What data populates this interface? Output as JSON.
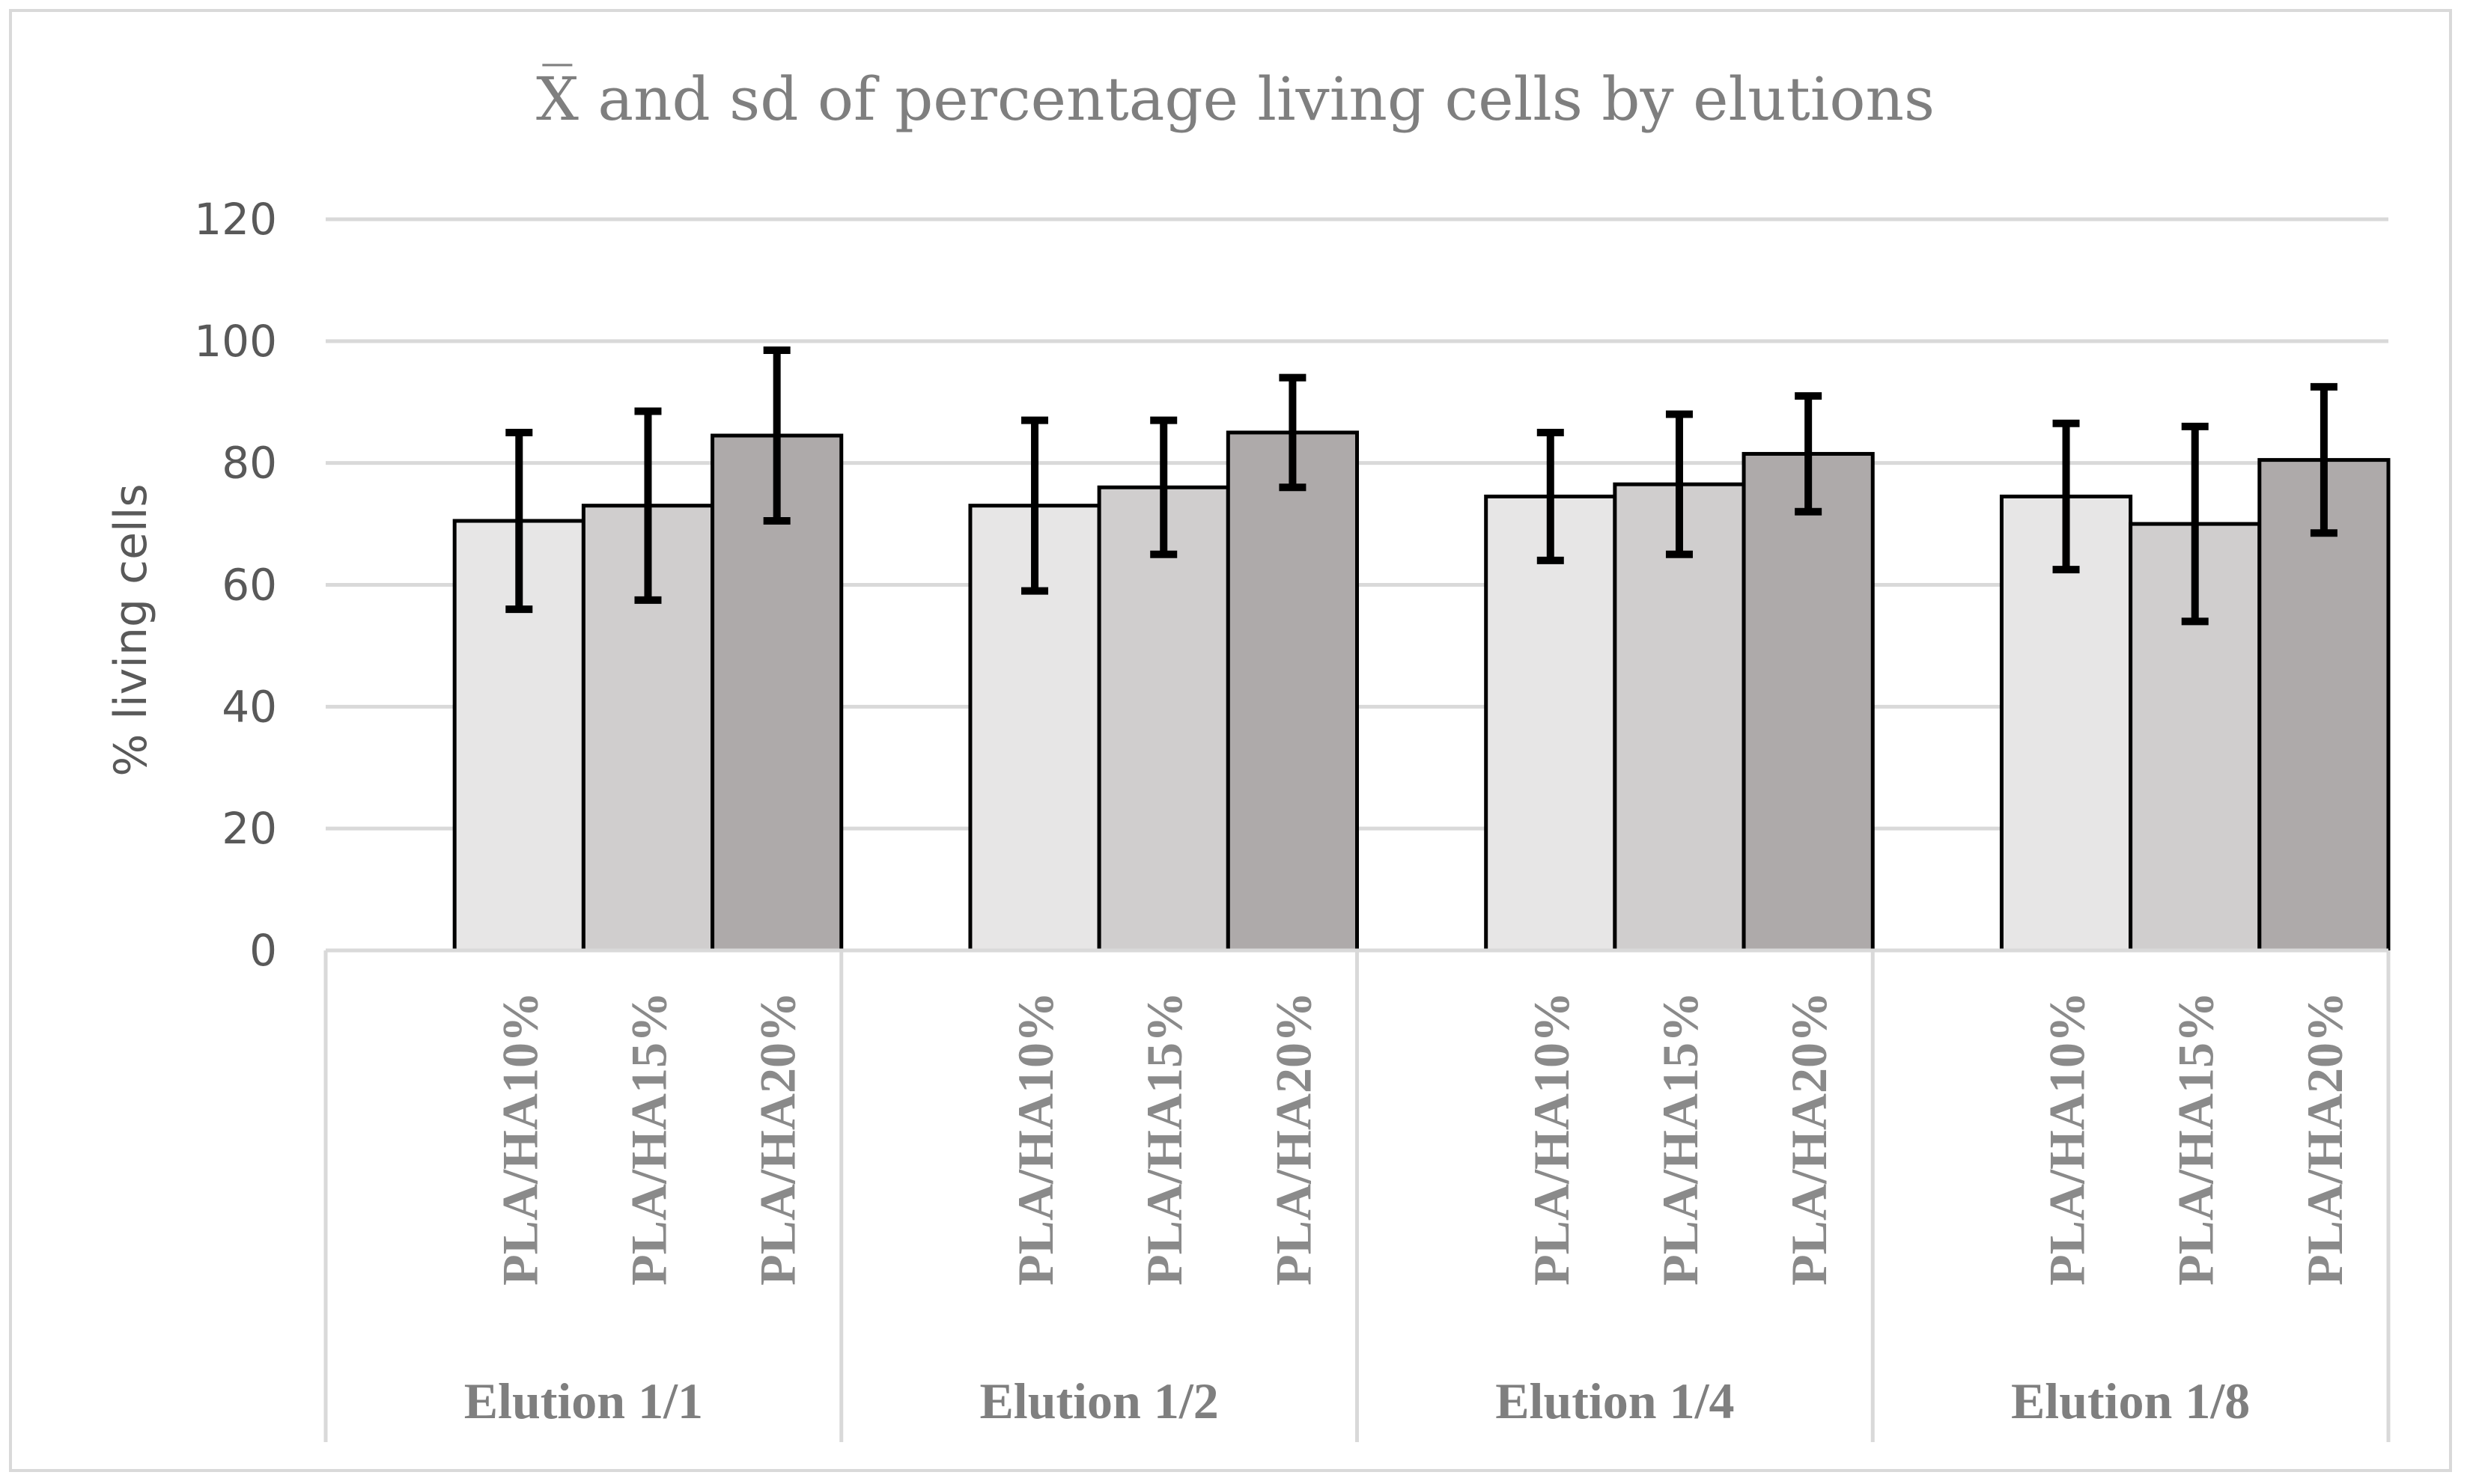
{
  "chart_data": {
    "type": "bar",
    "title": "X̅ and sd of percentage living cells by elutions",
    "ylabel": "% living cells",
    "xlabel": "",
    "ylim": [
      0,
      120
    ],
    "yticks": [
      0,
      20,
      40,
      60,
      80,
      100,
      120
    ],
    "grid": true,
    "legend": "none",
    "groups": [
      "Elution 1/1",
      "Elution 1/2",
      "Elution 1/4",
      "Elution 1/8"
    ],
    "categories": [
      "",
      "PLA/HA10%",
      "PLA/HA15%",
      "PLA/HA20%"
    ],
    "series": [
      {
        "values": [
          0,
          0,
          0,
          0
        ],
        "sd": [
          0,
          0,
          0,
          0
        ],
        "color": "#000000"
      },
      {
        "values": [
          70.5,
          73,
          74.5,
          74.5
        ],
        "sd": [
          14.5,
          14,
          10.5,
          12
        ],
        "color": "#e7e6e6"
      },
      {
        "values": [
          73,
          76,
          76.5,
          70
        ],
        "sd": [
          15.5,
          11,
          11.5,
          16
        ],
        "color": "#d0cece"
      },
      {
        "values": [
          84.5,
          85,
          81.5,
          80.5
        ],
        "sd": [
          14,
          9,
          9.5,
          12
        ],
        "color": "#aeaaaa"
      }
    ]
  }
}
